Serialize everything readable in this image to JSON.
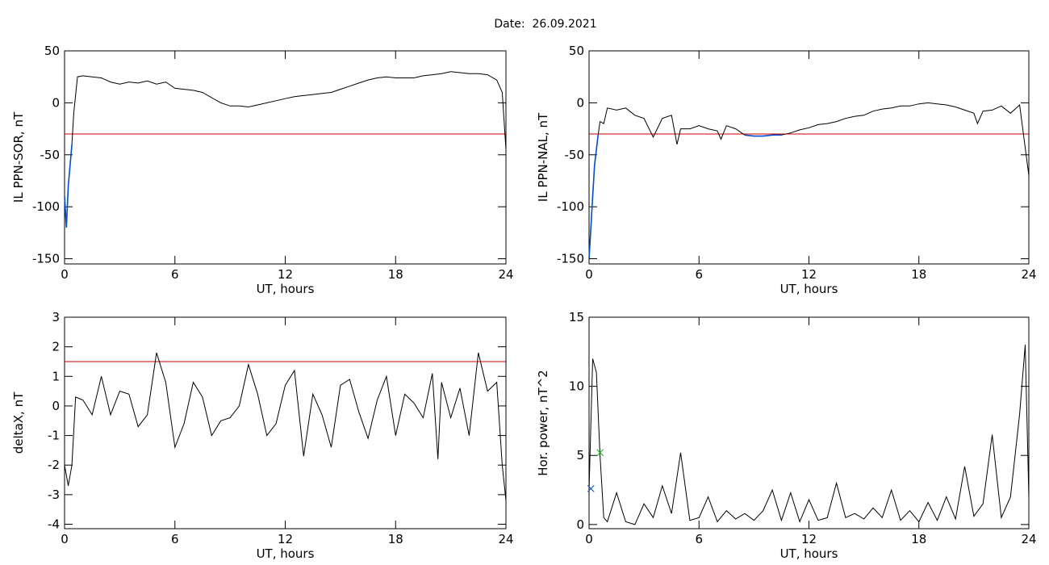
{
  "title": "Date:  26.09.2021",
  "chart_data": [
    {
      "type": "line",
      "ylabel": "IL PPN-SOR, nT",
      "xlabel": "UT, hours",
      "xlim": [
        0,
        24
      ],
      "xticks": [
        0,
        6,
        12,
        18,
        24
      ],
      "ylim": [
        -155,
        50
      ],
      "yticks": [
        50,
        0,
        -50,
        -100,
        -150
      ],
      "x": [
        0,
        0.1,
        0.2,
        0.4,
        0.5,
        0.7,
        1,
        1.5,
        2,
        2.5,
        3,
        3.5,
        4,
        4.5,
        5,
        5.5,
        6,
        6.5,
        7,
        7.5,
        8,
        8.5,
        9,
        9.5,
        10,
        10.5,
        11,
        11.5,
        12,
        12.5,
        13,
        13.5,
        14,
        14.5,
        15,
        15.5,
        16,
        16.5,
        17,
        17.5,
        18,
        18.5,
        19,
        19.5,
        20,
        20.5,
        21,
        21.5,
        22,
        22.5,
        23,
        23.5,
        23.8,
        24
      ],
      "series": [
        {
          "color": "#000000",
          "values": [
            -90,
            -120,
            -80,
            -40,
            -10,
            25,
            26,
            25,
            24,
            20,
            18,
            20,
            19,
            21,
            18,
            20,
            14,
            13,
            12,
            10,
            5,
            0,
            -3,
            -3,
            -4,
            -2,
            0,
            2,
            4,
            6,
            7,
            8,
            9,
            10,
            13,
            16,
            19,
            22,
            24,
            25,
            24,
            24,
            24,
            26,
            27,
            28,
            30,
            29,
            28,
            28,
            27,
            22,
            10,
            -45
          ]
        }
      ],
      "threshold": {
        "value": -30,
        "color": "#cc0000"
      },
      "below_color": "#0050d0"
    },
    {
      "type": "line",
      "ylabel": "IL PPN-NAL, nT",
      "xlabel": "UT, hours",
      "xlim": [
        0,
        24
      ],
      "xticks": [
        0,
        6,
        12,
        18,
        24
      ],
      "ylim": [
        -155,
        50
      ],
      "yticks": [
        50,
        0,
        -50,
        -100,
        -150
      ],
      "x": [
        0,
        0.1,
        0.2,
        0.3,
        0.5,
        0.6,
        0.8,
        1,
        1.5,
        2,
        2.5,
        3,
        3.5,
        4,
        4.5,
        4.8,
        5,
        5.5,
        6,
        6.5,
        7,
        7.2,
        7.5,
        8,
        8.5,
        9,
        9.5,
        10,
        10.5,
        11,
        11.5,
        12,
        12.5,
        13,
        13.5,
        14,
        14.5,
        15,
        15.5,
        16,
        16.5,
        17,
        17.5,
        18,
        18.5,
        19,
        19.5,
        20,
        20.5,
        21,
        21.2,
        21.5,
        22,
        22.5,
        23,
        23.5,
        24
      ],
      "series": [
        {
          "color": "#000000",
          "values": [
            -150,
            -120,
            -90,
            -60,
            -30,
            -18,
            -20,
            -5,
            -7,
            -5,
            -12,
            -15,
            -33,
            -15,
            -12,
            -40,
            -25,
            -25,
            -22,
            -25,
            -27,
            -35,
            -22,
            -25,
            -31,
            -32,
            -32,
            -31,
            -31,
            -29,
            -26,
            -24,
            -21,
            -20,
            -18,
            -15,
            -13,
            -12,
            -8,
            -6,
            -5,
            -3,
            -3,
            -1,
            0,
            -1,
            -2,
            -4,
            -7,
            -10,
            -20,
            -8,
            -7,
            -3,
            -10,
            -2,
            -70
          ]
        }
      ],
      "threshold": {
        "value": -30,
        "color": "#cc0000"
      },
      "below_color": "#0050d0"
    },
    {
      "type": "line",
      "ylabel": "deltaX, nT",
      "xlabel": "UT, hours",
      "xlim": [
        0,
        24
      ],
      "xticks": [
        0,
        6,
        12,
        18,
        24
      ],
      "ylim": [
        -4.15,
        3
      ],
      "yticks": [
        3,
        2,
        1,
        0,
        -1,
        -2,
        -3,
        -4
      ],
      "x": [
        0,
        0.2,
        0.4,
        0.6,
        1,
        1.5,
        2,
        2.5,
        3,
        3.5,
        4,
        4.5,
        5,
        5.5,
        6,
        6.5,
        7,
        7.5,
        8,
        8.5,
        9,
        9.5,
        10,
        10.5,
        11,
        11.5,
        12,
        12.5,
        13,
        13.5,
        14,
        14.5,
        15,
        15.5,
        16,
        16.5,
        17,
        17.5,
        18,
        18.5,
        19,
        19.5,
        20,
        20.3,
        20.5,
        21,
        21.5,
        22,
        22.5,
        23,
        23.5,
        23.8,
        24
      ],
      "series": [
        {
          "color": "#000000",
          "values": [
            -2,
            -2.7,
            -2,
            0.3,
            0.2,
            -0.3,
            1,
            -0.3,
            0.5,
            0.4,
            -0.7,
            -0.3,
            1.8,
            0.8,
            -1.4,
            -0.6,
            0.8,
            0.3,
            -1,
            -0.5,
            -0.4,
            0,
            1.4,
            0.4,
            -1,
            -0.6,
            0.7,
            1.2,
            -1.7,
            0.4,
            -0.3,
            -1.4,
            0.7,
            0.9,
            -0.2,
            -1.1,
            0.2,
            1,
            -1,
            0.4,
            0.1,
            -0.4,
            1.1,
            -1.8,
            0.8,
            -0.4,
            0.6,
            -1,
            1.8,
            0.5,
            0.8,
            -2,
            -3.2
          ]
        }
      ],
      "threshold": {
        "value": 1.5,
        "color": "#cc0000"
      }
    },
    {
      "type": "line",
      "ylabel": "Hor. power, nT^2",
      "xlabel": "UT, hours",
      "xlim": [
        0,
        24
      ],
      "xticks": [
        0,
        6,
        12,
        18,
        24
      ],
      "ylim": [
        -0.3,
        15
      ],
      "yticks": [
        0,
        5,
        10,
        15
      ],
      "x": [
        0,
        0.2,
        0.4,
        0.6,
        0.8,
        1,
        1.5,
        2,
        2.5,
        3,
        3.5,
        4,
        4.5,
        5,
        5.5,
        6,
        6.5,
        7,
        7.5,
        8,
        8.5,
        9,
        9.5,
        10,
        10.5,
        11,
        11.5,
        12,
        12.5,
        13,
        13.5,
        14,
        14.5,
        15,
        15.5,
        16,
        16.5,
        17,
        17.5,
        18,
        18.5,
        19,
        19.5,
        20,
        20.5,
        21,
        21.5,
        22,
        22.5,
        23,
        23.5,
        23.8,
        24
      ],
      "series": [
        {
          "color": "#000000",
          "values": [
            2.5,
            12,
            11,
            5,
            0.5,
            0.2,
            2.3,
            0.2,
            0,
            1.5,
            0.5,
            2.8,
            0.8,
            5.2,
            0.3,
            0.5,
            2,
            0.2,
            1,
            0.4,
            0.8,
            0.3,
            1,
            2.5,
            0.3,
            2.3,
            0.2,
            1.8,
            0.3,
            0.5,
            3,
            0.5,
            0.8,
            0.4,
            1.2,
            0.5,
            2.5,
            0.3,
            1,
            0.2,
            1.6,
            0.3,
            2,
            0.4,
            4.2,
            0.6,
            1.5,
            6.5,
            0.5,
            2,
            8,
            13,
            2
          ]
        }
      ],
      "markers": [
        {
          "x": 0.6,
          "y": 5.2,
          "color": "#00b000"
        },
        {
          "x": 0.1,
          "y": 2.6,
          "color": "#0050d0"
        }
      ]
    }
  ]
}
